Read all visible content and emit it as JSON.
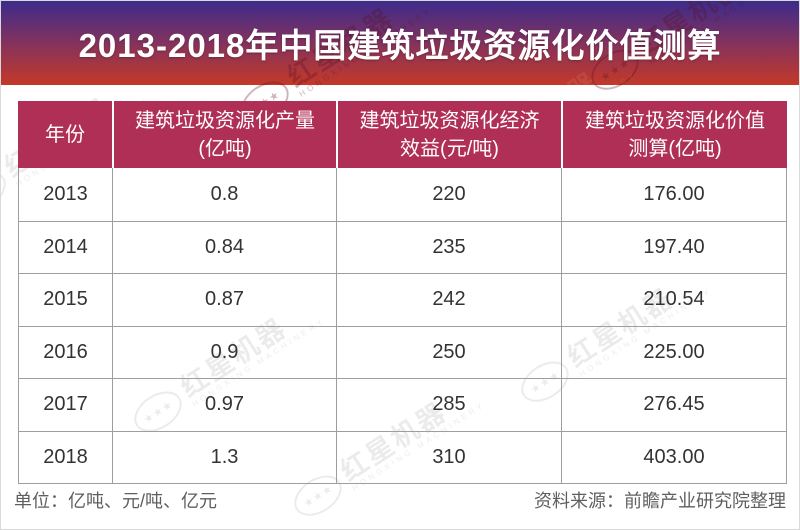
{
  "banner": {
    "title": "2013-2018年中国建筑垃圾资源化价值测算"
  },
  "table": {
    "headers": [
      "年份",
      "建筑垃圾资源化产量(亿吨)",
      "建筑垃圾资源化经济效益(元/吨)",
      "建筑垃圾资源化价值测算(亿吨)"
    ],
    "rows": [
      [
        "2013",
        "0.8",
        "220",
        "176.00"
      ],
      [
        "2014",
        "0.84",
        "235",
        "197.40"
      ],
      [
        "2015",
        "0.87",
        "242",
        "210.54"
      ],
      [
        "2016",
        "0.9",
        "250",
        "225.00"
      ],
      [
        "2017",
        "0.97",
        "285",
        "276.45"
      ],
      [
        "2018",
        "1.3",
        "310",
        "403.00"
      ]
    ]
  },
  "footer": {
    "units": "单位：亿吨、元/吨、亿元",
    "source": "资料来源：前瞻产业研究院整理"
  },
  "watermark": {
    "brand": "红星机器",
    "brand_en": "HONGXING MACHINERY",
    "logo_stars": "★★★"
  },
  "colors": {
    "banner_top": "#3c2b8c",
    "banner_bottom": "#c43928",
    "header_bg": "#b02f57"
  },
  "chart_data": {
    "type": "table",
    "title": "2013-2018年中国建筑垃圾资源化价值测算",
    "columns": [
      "年份",
      "建筑垃圾资源化产量(亿吨)",
      "建筑垃圾资源化经济效益(元/吨)",
      "建筑垃圾资源化价值测算(亿吨)"
    ],
    "rows": [
      [
        2013,
        0.8,
        220,
        176.0
      ],
      [
        2014,
        0.84,
        235,
        197.4
      ],
      [
        2015,
        0.87,
        242,
        210.54
      ],
      [
        2016,
        0.9,
        250,
        225.0
      ],
      [
        2017,
        0.97,
        285,
        276.45
      ],
      [
        2018,
        1.3,
        310,
        403.0
      ]
    ],
    "units_note": "亿吨、元/吨、亿元",
    "source": "前瞻产业研究院整理"
  }
}
